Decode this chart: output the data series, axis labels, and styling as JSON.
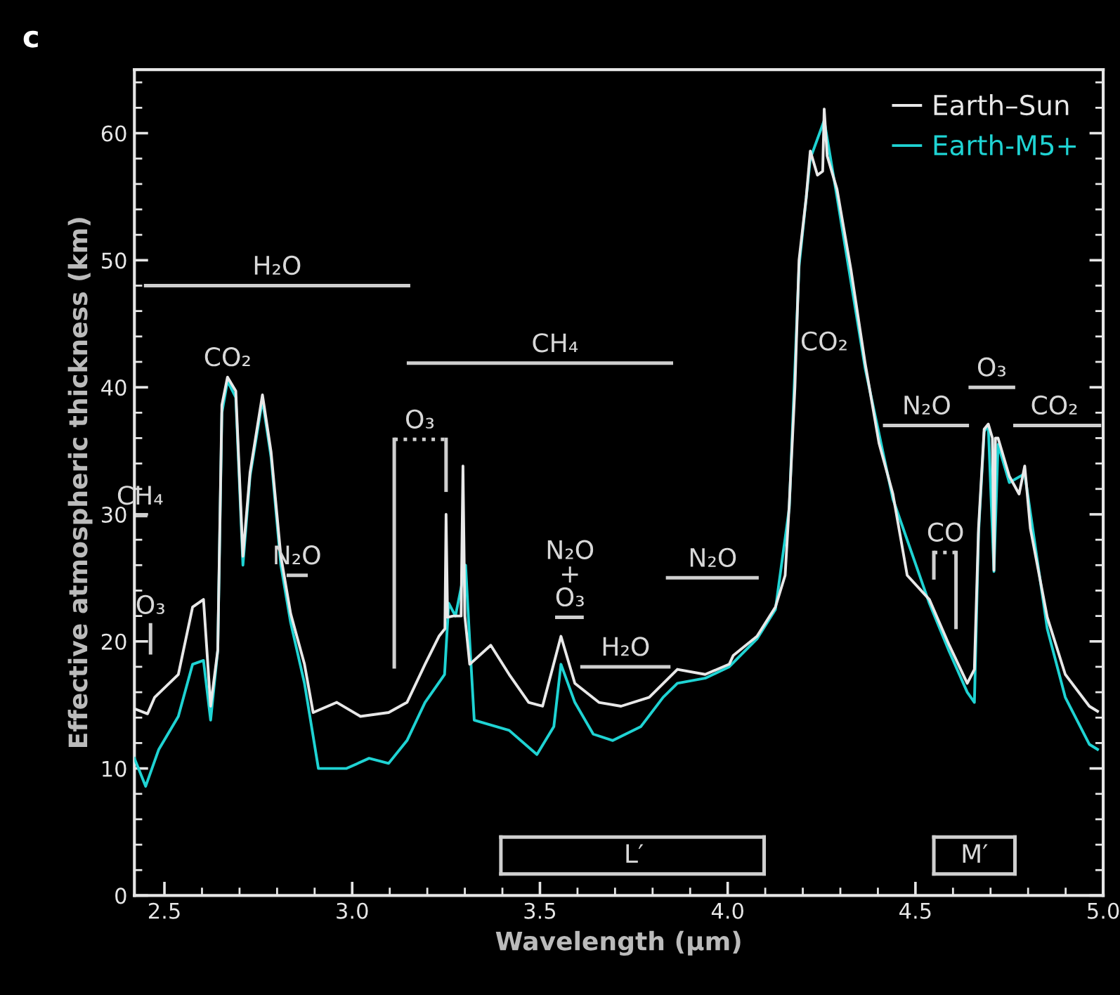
{
  "chart_data": {
    "type": "line",
    "title": "c",
    "xlabel": "Wavelength (µm)",
    "ylabel": "Effective atmospheric thickness (km)",
    "xlim": [
      2.42,
      5.0
    ],
    "xticks": [
      {
        "value": 2.5,
        "label": "2.5"
      },
      {
        "value": 3.0,
        "label": "3.0"
      },
      {
        "value": 3.5,
        "label": "3.5"
      },
      {
        "value": 4.0,
        "label": "4.0"
      },
      {
        "value": 4.5,
        "label": "4.5"
      },
      {
        "value": 5.0,
        "label": "5.0"
      }
    ],
    "ylim": [
      0,
      65
    ],
    "yticks": [
      0,
      10,
      20,
      30,
      40,
      50,
      60
    ],
    "grid": false,
    "legend": "top right",
    "marker": "none",
    "line_style": "solid",
    "series": [
      {
        "name": "Earth–Sun",
        "color": "#e8e8e8",
        "x": [
          2.42,
          2.455,
          2.474,
          2.537,
          2.575,
          2.604,
          2.623,
          2.642,
          2.653,
          2.668,
          2.69,
          2.709,
          2.728,
          2.761,
          2.784,
          2.81,
          2.836,
          2.873,
          2.896,
          2.959,
          3.022,
          3.097,
          3.146,
          3.194,
          3.231,
          3.247,
          3.25,
          3.254,
          3.269,
          3.29,
          3.295,
          3.3,
          3.313,
          3.369,
          3.418,
          3.47,
          3.507,
          3.556,
          3.593,
          3.657,
          3.716,
          3.791,
          3.866,
          3.94,
          4.004,
          4.015,
          4.078,
          4.127,
          4.153,
          4.164,
          4.179,
          4.19,
          4.209,
          4.22,
          4.239,
          4.253,
          4.257,
          4.265,
          4.291,
          4.328,
          4.366,
          4.403,
          4.44,
          4.478,
          4.537,
          4.59,
          4.638,
          4.657,
          4.668,
          4.683,
          4.694,
          4.705,
          4.709,
          4.713,
          4.72,
          4.75,
          4.776,
          4.791,
          4.806,
          4.851,
          4.899,
          4.963,
          4.985
        ],
        "values": [
          14.7,
          14.3,
          15.6,
          17.4,
          22.7,
          23.3,
          14.9,
          19.3,
          38.6,
          40.8,
          39.7,
          26.7,
          33.3,
          39.4,
          34.9,
          26.7,
          22.2,
          18.2,
          14.4,
          15.2,
          14.1,
          14.4,
          15.2,
          18.2,
          20.4,
          21,
          30.0,
          21.9,
          22,
          22,
          33.8,
          22,
          18.2,
          19.7,
          17.4,
          15.2,
          14.9,
          20.4,
          16.7,
          15.2,
          14.9,
          15.6,
          17.8,
          17.4,
          18.2,
          18.9,
          20.4,
          22.7,
          25.2,
          30.8,
          40,
          50,
          54.9,
          58.6,
          56.7,
          57,
          61.9,
          58.2,
          55.6,
          49.3,
          41.9,
          35.6,
          31.6,
          25.2,
          23.3,
          19.7,
          16.7,
          17.8,
          28.9,
          36.7,
          37.1,
          36,
          25.6,
          36,
          36,
          33,
          31.6,
          33.8,
          28.9,
          21.9,
          17.4,
          14.9,
          14.5
        ]
      },
      {
        "name": "Earth-M5+",
        "color": "#1fd3d3",
        "x": [
          2.42,
          2.45,
          2.485,
          2.537,
          2.575,
          2.604,
          2.623,
          2.642,
          2.653,
          2.668,
          2.69,
          2.709,
          2.728,
          2.761,
          2.784,
          2.81,
          2.836,
          2.873,
          2.91,
          2.985,
          3.045,
          3.097,
          3.146,
          3.194,
          3.246,
          3.257,
          3.275,
          3.302,
          3.313,
          3.325,
          3.418,
          3.492,
          3.537,
          3.556,
          3.593,
          3.642,
          3.694,
          3.769,
          3.828,
          3.866,
          3.94,
          4.004,
          4.078,
          4.127,
          4.164,
          4.19,
          4.22,
          4.257,
          4.291,
          4.366,
          4.44,
          4.537,
          4.59,
          4.638,
          4.657,
          4.668,
          4.683,
          4.694,
          4.709,
          4.72,
          4.75,
          4.791,
          4.851,
          4.899,
          4.963,
          4.985
        ],
        "values": [
          10.8,
          8.6,
          11.5,
          14.1,
          18.2,
          18.5,
          13.8,
          19.3,
          38,
          40.5,
          39.2,
          26,
          33,
          39,
          34.5,
          26,
          21.5,
          16.7,
          10,
          10,
          10.8,
          10.4,
          12.2,
          15.2,
          17.4,
          23,
          22,
          26,
          20,
          13.8,
          13,
          11.1,
          13.3,
          18.2,
          15.2,
          12.7,
          12.2,
          13.3,
          15.6,
          16.7,
          17.1,
          18,
          20.2,
          22.5,
          30.5,
          49.5,
          58,
          61,
          55,
          41.5,
          31.2,
          23,
          19.2,
          16,
          15.2,
          28.5,
          36.5,
          37,
          25.5,
          35.5,
          32.5,
          33.2,
          21,
          15.6,
          11.9,
          11.5
        ]
      },
      {
        "color": "#cfcfcf",
        "x": [
          2.45,
          3.15
        ],
        "values": [
          48,
          48
        ]
      },
      {
        "color": "#cfcfcf",
        "x": [
          3.15,
          3.85
        ],
        "values": [
          41.9,
          41.9
        ]
      },
      {
        "color": "#cfcfcf",
        "x": [
          3.112,
          3.112
        ],
        "values": [
          18,
          35.9
        ]
      },
      {
        "color": "#cfcfcf",
        "line_style": "dotted",
        "x": [
          3.112,
          3.25
        ],
        "values": [
          35.9,
          35.9
        ]
      },
      {
        "color": "#cfcfcf",
        "x": [
          3.25,
          3.25
        ],
        "values": [
          35.9,
          31.9
        ]
      },
      {
        "color": "#cfcfcf",
        "x": [
          2.42,
          2.45
        ],
        "values": [
          29.9,
          29.9
        ]
      },
      {
        "color": "#cfcfcf",
        "x": [
          2.463,
          2.463
        ],
        "values": [
          21.3,
          19.1
        ]
      },
      {
        "color": "#cfcfcf",
        "x": [
          2.83,
          2.877
        ],
        "values": [
          25.2,
          25.2
        ]
      },
      {
        "color": "#cfcfcf",
        "x": [
          3.545,
          3.612
        ],
        "values": [
          21.9,
          21.9
        ]
      },
      {
        "color": "#cfcfcf",
        "x": [
          3.612,
          3.843
        ],
        "values": [
          18,
          18
        ]
      },
      {
        "color": "#cfcfcf",
        "x": [
          3.84,
          4.078
        ],
        "values": [
          25,
          25
        ]
      },
      {
        "color": "#cfcfcf",
        "x": [
          4.418,
          4.638
        ],
        "values": [
          37,
          37
        ]
      },
      {
        "color": "#cfcfcf",
        "x": [
          4.646,
          4.761
        ],
        "values": [
          40,
          40
        ]
      },
      {
        "color": "#cfcfcf",
        "x": [
          4.765,
          4.99
        ],
        "values": [
          37,
          37
        ]
      },
      {
        "color": "#cfcfcf",
        "x": [
          4.549,
          4.549
        ],
        "values": [
          27,
          25
        ]
      },
      {
        "color": "#cfcfcf",
        "line_style": "dotted",
        "x": [
          4.549,
          4.608
        ],
        "values": [
          27,
          27
        ]
      },
      {
        "color": "#cfcfcf",
        "x": [
          4.608,
          4.608
        ],
        "values": [
          27,
          21.1
        ]
      },
      {
        "color": "#cfcfcf",
        "x": [
          3.396,
          4.097
        ],
        "values": [
          1.7,
          1.7
        ]
      },
      {
        "color": "#cfcfcf",
        "x": [
          3.396,
          4.097
        ],
        "values": [
          4.6,
          4.6
        ]
      },
      {
        "color": "#cfcfcf",
        "x": [
          3.396,
          3.396
        ],
        "values": [
          1.7,
          4.6
        ]
      },
      {
        "color": "#cfcfcf",
        "x": [
          4.097,
          4.097
        ],
        "values": [
          1.7,
          4.6
        ]
      },
      {
        "color": "#cfcfcf",
        "x": [
          4.549,
          4.765
        ],
        "values": [
          1.7,
          1.7
        ]
      },
      {
        "color": "#cfcfcf",
        "x": [
          4.549,
          4.765
        ],
        "values": [
          4.6,
          4.6
        ]
      },
      {
        "color": "#cfcfcf",
        "x": [
          4.549,
          4.549
        ],
        "values": [
          1.7,
          4.6
        ]
      },
      {
        "color": "#cfcfcf",
        "x": [
          4.765,
          4.765
        ],
        "values": [
          1.7,
          4.6
        ]
      }
    ],
    "annotations": [
      {
        "text": "H₂O",
        "x": 2.8,
        "y": 48
      },
      {
        "text": "CO₂",
        "x": 2.668,
        "y": 40.8
      },
      {
        "text": "CH₄",
        "x": 3.54,
        "y": 41.9
      },
      {
        "text": "O₃",
        "x": 3.18,
        "y": 35.9
      },
      {
        "text": "CH₄",
        "x": 2.435,
        "y": 29.9
      },
      {
        "text": "O₃",
        "x": 2.463,
        "y": 21.3
      },
      {
        "text": "N₂O",
        "x": 2.853,
        "y": 25.2
      },
      {
        "text": "N₂O\n+\nO₃",
        "x": 3.58,
        "y": 21.9
      },
      {
        "text": "H₂O",
        "x": 3.728,
        "y": 18
      },
      {
        "text": "N₂O",
        "x": 3.96,
        "y": 25
      },
      "CO₂",
      {
        "text": "N₂O",
        "x": 4.53,
        "y": 37
      },
      {
        "text": "O₃",
        "x": 4.703,
        "y": 40
      },
      {
        "text": "CO₂",
        "x": 4.87,
        "y": 37
      },
      {
        "text": "CO",
        "x": 4.58,
        "y": 27
      },
      {
        "text": "L′",
        "x": 3.75,
        "y": 1.7
      },
      {
        "text": "M′",
        "x": 4.657,
        "y": 1.7
      }
    ]
  }
}
